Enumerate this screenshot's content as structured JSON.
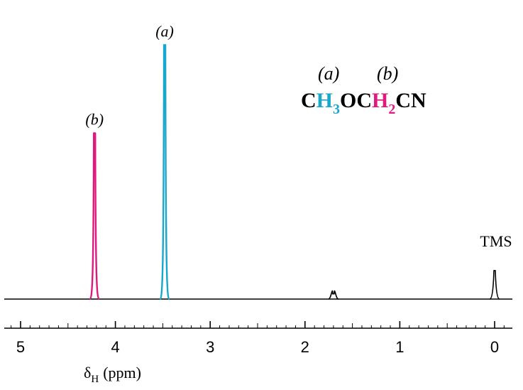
{
  "chart_data": {
    "type": "line",
    "title": "",
    "xlabel": "δ",
    "xlabel_subscript": "H",
    "xlabel_units": "(ppm)",
    "xlim": [
      5.15,
      -0.2
    ],
    "ylim": [
      0,
      1
    ],
    "x_ticks": [
      5,
      4,
      3,
      2,
      1,
      0
    ],
    "x_tick_labels": [
      "5",
      "4",
      "3",
      "2",
      "1",
      "0"
    ],
    "minor_tick_step": 0.1,
    "peaks": [
      {
        "name": "b",
        "label": "(b)",
        "ppm": 4.22,
        "height": 0.64,
        "color": "#e0197d"
      },
      {
        "name": "a",
        "label": "(a)",
        "ppm": 3.48,
        "height": 0.98,
        "color": "#1aa7cc"
      },
      {
        "name": "impurity",
        "label": "",
        "ppm": 1.7,
        "height": 0.02,
        "color": "#000000"
      },
      {
        "name": "tms",
        "label": "TMS",
        "ppm": 0.0,
        "height": 0.11,
        "color": "#000000"
      }
    ],
    "structure": {
      "labels": [
        {
          "text": "(a)",
          "over": "H3"
        },
        {
          "text": "(b)",
          "over": "H2"
        }
      ],
      "segments": [
        {
          "text": "C",
          "color": "#000000",
          "sub": false
        },
        {
          "text": "H",
          "color": "#1aa7cc",
          "sub": false
        },
        {
          "text": "3",
          "color": "#1aa7cc",
          "sub": true
        },
        {
          "text": "OC",
          "color": "#000000",
          "sub": false
        },
        {
          "text": "H",
          "color": "#e0197d",
          "sub": false
        },
        {
          "text": "2",
          "color": "#e0197d",
          "sub": true
        },
        {
          "text": "CN",
          "color": "#000000",
          "sub": false
        }
      ]
    }
  }
}
